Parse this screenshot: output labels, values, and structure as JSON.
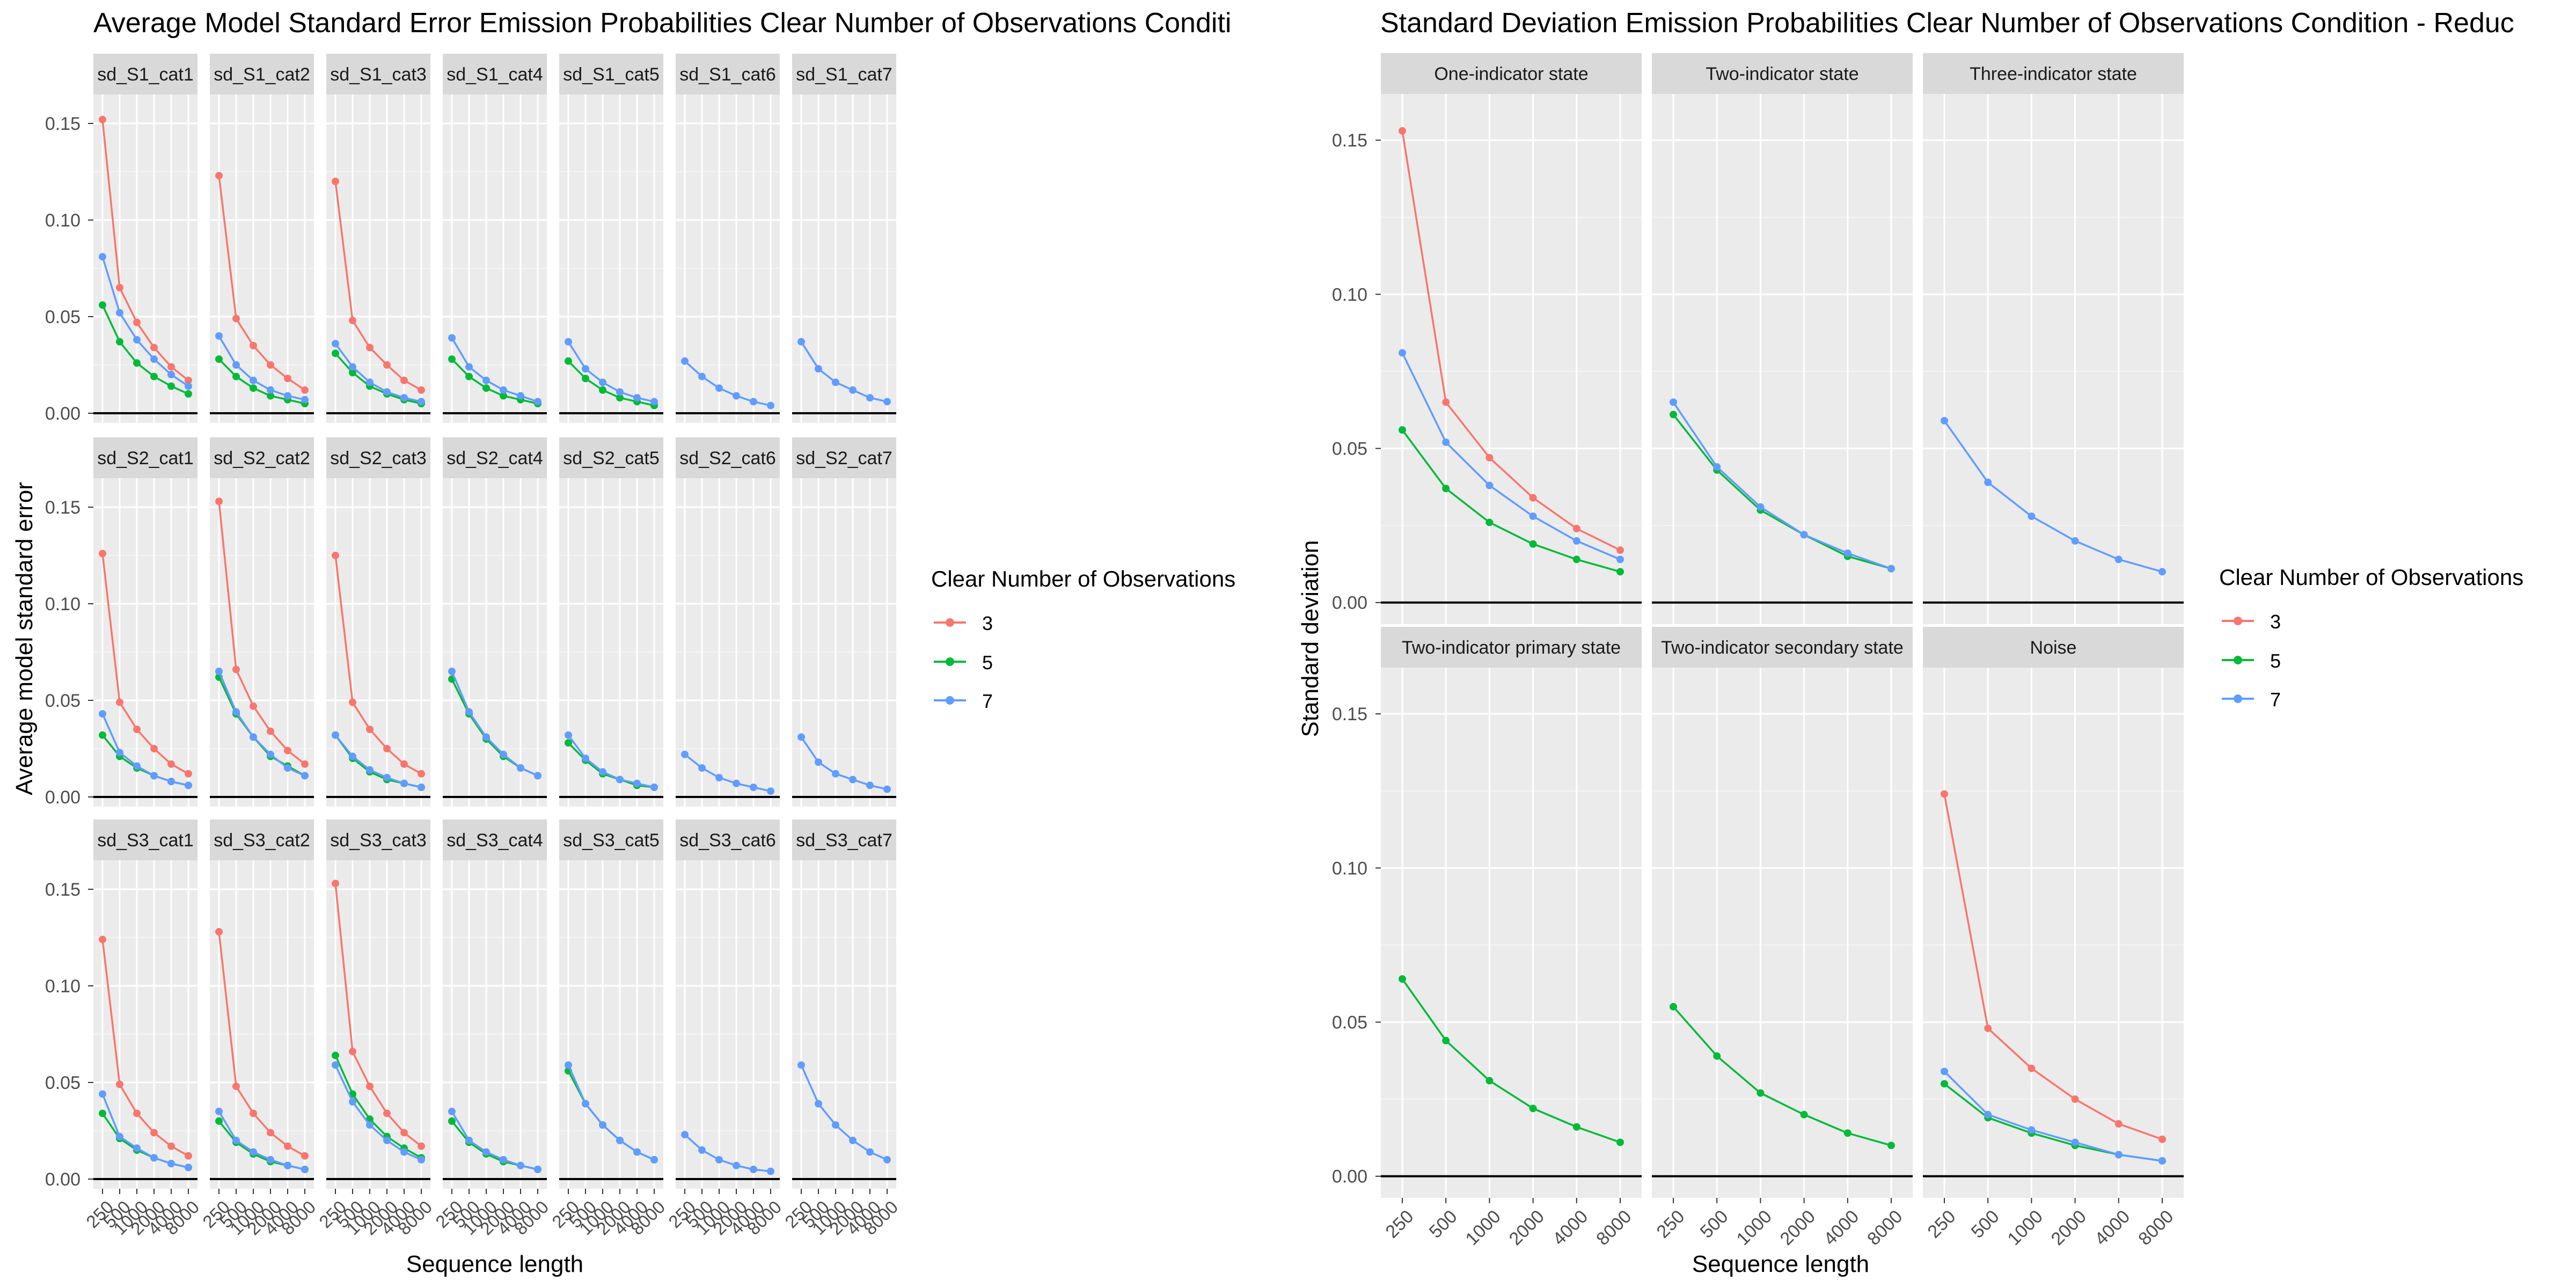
{
  "figure": {
    "left_title": "Average Model Standard Error Emission Probabilities Clear Number of Observations Conditi",
    "right_title": "Standard Deviation Emission Probabilities Clear Number of Observations Condition - Reduc",
    "left_ylabel": "Average model standard error",
    "right_ylabel": "Standard deviation",
    "left_xlabel": "Sequence length",
    "right_xlabel": "Sequence length"
  },
  "legend": {
    "title": "Clear Number of Observations",
    "items": [
      {
        "label": "3",
        "color": "#F8766D"
      },
      {
        "label": "5",
        "color": "#00BA38"
      },
      {
        "label": "7",
        "color": "#619CFF"
      }
    ]
  },
  "chart_data": [
    {
      "type": "line",
      "title": "Average Model Standard Error Emission Probabilities Clear Number of Observations Conditi",
      "xlabel": "Sequence length",
      "ylabel": "Average model standard error",
      "x": [
        "250",
        "500",
        "1000",
        "2000",
        "4000",
        "8000"
      ],
      "ylim": [
        -0.005,
        0.165
      ],
      "y_ticks": [
        "0.00",
        "0.05",
        "0.10",
        "0.15"
      ],
      "legend_position": "right",
      "panels": [
        {
          "label": "sd_S1_cat1",
          "series": [
            {
              "name": "3",
              "values": [
                0.152,
                0.065,
                0.047,
                0.034,
                0.024,
                0.017
              ]
            },
            {
              "name": "5",
              "values": [
                0.056,
                0.037,
                0.026,
                0.019,
                0.014,
                0.01
              ]
            },
            {
              "name": "7",
              "values": [
                0.081,
                0.052,
                0.038,
                0.028,
                0.02,
                0.014
              ]
            }
          ]
        },
        {
          "label": "sd_S1_cat2",
          "series": [
            {
              "name": "3",
              "values": [
                0.123,
                0.049,
                0.035,
                0.025,
                0.018,
                0.012
              ]
            },
            {
              "name": "5",
              "values": [
                0.028,
                0.019,
                0.013,
                0.009,
                0.007,
                0.005
              ]
            },
            {
              "name": "7",
              "values": [
                0.04,
                0.025,
                0.017,
                0.012,
                0.009,
                0.007
              ]
            }
          ]
        },
        {
          "label": "sd_S1_cat3",
          "series": [
            {
              "name": "3",
              "values": [
                0.12,
                0.048,
                0.034,
                0.025,
                0.017,
                0.012
              ]
            },
            {
              "name": "5",
              "values": [
                0.031,
                0.021,
                0.014,
                0.01,
                0.007,
                0.005
              ]
            },
            {
              "name": "7",
              "values": [
                0.036,
                0.024,
                0.016,
                0.011,
                0.008,
                0.006
              ]
            }
          ]
        },
        {
          "label": "sd_S1_cat4",
          "series": [
            {
              "name": "5",
              "values": [
                0.028,
                0.019,
                0.013,
                0.009,
                0.007,
                0.005
              ]
            },
            {
              "name": "7",
              "values": [
                0.039,
                0.024,
                0.017,
                0.012,
                0.009,
                0.006
              ]
            }
          ]
        },
        {
          "label": "sd_S1_cat5",
          "series": [
            {
              "name": "5",
              "values": [
                0.027,
                0.018,
                0.012,
                0.008,
                0.006,
                0.004
              ]
            },
            {
              "name": "7",
              "values": [
                0.037,
                0.023,
                0.016,
                0.011,
                0.008,
                0.006
              ]
            }
          ]
        },
        {
          "label": "sd_S1_cat6",
          "series": [
            {
              "name": "7",
              "values": [
                0.027,
                0.019,
                0.013,
                0.009,
                0.006,
                0.004
              ]
            }
          ]
        },
        {
          "label": "sd_S1_cat7",
          "series": [
            {
              "name": "7",
              "values": [
                0.037,
                0.023,
                0.016,
                0.012,
                0.008,
                0.006
              ]
            }
          ]
        },
        {
          "label": "sd_S2_cat1",
          "series": [
            {
              "name": "3",
              "values": [
                0.126,
                0.049,
                0.035,
                0.025,
                0.017,
                0.012
              ]
            },
            {
              "name": "5",
              "values": [
                0.032,
                0.021,
                0.015,
                0.011,
                0.008,
                0.006
              ]
            },
            {
              "name": "7",
              "values": [
                0.043,
                0.023,
                0.016,
                0.011,
                0.008,
                0.006
              ]
            }
          ]
        },
        {
          "label": "sd_S2_cat2",
          "series": [
            {
              "name": "3",
              "values": [
                0.153,
                0.066,
                0.047,
                0.034,
                0.024,
                0.017
              ]
            },
            {
              "name": "5",
              "values": [
                0.062,
                0.043,
                0.031,
                0.021,
                0.016,
                0.011
              ]
            },
            {
              "name": "7",
              "values": [
                0.065,
                0.044,
                0.031,
                0.022,
                0.015,
                0.011
              ]
            }
          ]
        },
        {
          "label": "sd_S2_cat3",
          "series": [
            {
              "name": "3",
              "values": [
                0.125,
                0.049,
                0.035,
                0.025,
                0.017,
                0.012
              ]
            },
            {
              "name": "5",
              "values": [
                0.032,
                0.02,
                0.013,
                0.009,
                0.007,
                0.005
              ]
            },
            {
              "name": "7",
              "values": [
                0.032,
                0.021,
                0.014,
                0.01,
                0.007,
                0.005
              ]
            }
          ]
        },
        {
          "label": "sd_S2_cat4",
          "series": [
            {
              "name": "5",
              "values": [
                0.061,
                0.043,
                0.03,
                0.021,
                0.015,
                0.011
              ]
            },
            {
              "name": "7",
              "values": [
                0.065,
                0.044,
                0.031,
                0.022,
                0.015,
                0.011
              ]
            }
          ]
        },
        {
          "label": "sd_S2_cat5",
          "series": [
            {
              "name": "5",
              "values": [
                0.028,
                0.019,
                0.012,
                0.009,
                0.006,
                0.005
              ]
            },
            {
              "name": "7",
              "values": [
                0.032,
                0.02,
                0.013,
                0.009,
                0.007,
                0.005
              ]
            }
          ]
        },
        {
          "label": "sd_S2_cat6",
          "series": [
            {
              "name": "7",
              "values": [
                0.022,
                0.015,
                0.01,
                0.007,
                0.005,
                0.003
              ]
            }
          ]
        },
        {
          "label": "sd_S2_cat7",
          "series": [
            {
              "name": "7",
              "values": [
                0.031,
                0.018,
                0.012,
                0.009,
                0.006,
                0.004
              ]
            }
          ]
        },
        {
          "label": "sd_S3_cat1",
          "series": [
            {
              "name": "3",
              "values": [
                0.124,
                0.049,
                0.034,
                0.024,
                0.017,
                0.012
              ]
            },
            {
              "name": "5",
              "values": [
                0.034,
                0.021,
                0.015,
                0.011,
                0.008,
                0.006
              ]
            },
            {
              "name": "7",
              "values": [
                0.044,
                0.022,
                0.016,
                0.011,
                0.008,
                0.006
              ]
            }
          ]
        },
        {
          "label": "sd_S3_cat2",
          "series": [
            {
              "name": "3",
              "values": [
                0.128,
                0.048,
                0.034,
                0.024,
                0.017,
                0.012
              ]
            },
            {
              "name": "5",
              "values": [
                0.03,
                0.019,
                0.013,
                0.009,
                0.007,
                0.005
              ]
            },
            {
              "name": "7",
              "values": [
                0.035,
                0.02,
                0.014,
                0.01,
                0.007,
                0.005
              ]
            }
          ]
        },
        {
          "label": "sd_S3_cat3",
          "series": [
            {
              "name": "3",
              "values": [
                0.153,
                0.066,
                0.048,
                0.034,
                0.024,
                0.017
              ]
            },
            {
              "name": "5",
              "values": [
                0.064,
                0.044,
                0.031,
                0.022,
                0.016,
                0.011
              ]
            },
            {
              "name": "7",
              "values": [
                0.059,
                0.04,
                0.028,
                0.02,
                0.014,
                0.01
              ]
            }
          ]
        },
        {
          "label": "sd_S3_cat4",
          "series": [
            {
              "name": "5",
              "values": [
                0.03,
                0.019,
                0.013,
                0.009,
                0.007,
                0.005
              ]
            },
            {
              "name": "7",
              "values": [
                0.035,
                0.02,
                0.014,
                0.01,
                0.007,
                0.005
              ]
            }
          ]
        },
        {
          "label": "sd_S3_cat5",
          "series": [
            {
              "name": "5",
              "values": [
                0.056,
                0.039,
                0.028,
                0.02,
                0.014,
                0.01
              ]
            },
            {
              "name": "7",
              "values": [
                0.059,
                0.039,
                0.028,
                0.02,
                0.014,
                0.01
              ]
            }
          ]
        },
        {
          "label": "sd_S3_cat6",
          "series": [
            {
              "name": "7",
              "values": [
                0.023,
                0.015,
                0.01,
                0.007,
                0.005,
                0.004
              ]
            }
          ]
        },
        {
          "label": "sd_S3_cat7",
          "series": [
            {
              "name": "7",
              "values": [
                0.059,
                0.039,
                0.028,
                0.02,
                0.014,
                0.01
              ]
            }
          ]
        }
      ]
    },
    {
      "type": "line",
      "title": "Standard Deviation Emission Probabilities Clear Number of Observations Condition - Reduc",
      "xlabel": "Sequence length",
      "ylabel": "Standard deviation",
      "x": [
        "250",
        "500",
        "1000",
        "2000",
        "4000",
        "8000"
      ],
      "ylim": [
        -0.007,
        0.165
      ],
      "y_ticks": [
        "0.00",
        "0.05",
        "0.10",
        "0.15"
      ],
      "legend_position": "right",
      "panels": [
        {
          "label": "One-indicator state",
          "series": [
            {
              "name": "3",
              "values": [
                0.153,
                0.065,
                0.047,
                0.034,
                0.024,
                0.017
              ]
            },
            {
              "name": "5",
              "values": [
                0.056,
                0.037,
                0.026,
                0.019,
                0.014,
                0.01
              ]
            },
            {
              "name": "7",
              "values": [
                0.081,
                0.052,
                0.038,
                0.028,
                0.02,
                0.014
              ]
            }
          ]
        },
        {
          "label": "Two-indicator state",
          "series": [
            {
              "name": "5",
              "values": [
                0.061,
                0.043,
                0.03,
                0.022,
                0.015,
                0.011
              ]
            },
            {
              "name": "7",
              "values": [
                0.065,
                0.044,
                0.031,
                0.022,
                0.016,
                0.011
              ]
            }
          ]
        },
        {
          "label": "Three-indicator state",
          "series": [
            {
              "name": "7",
              "values": [
                0.059,
                0.039,
                0.028,
                0.02,
                0.014,
                0.01
              ]
            }
          ]
        },
        {
          "label": "Two-indicator primary state",
          "series": [
            {
              "name": "5",
              "values": [
                0.064,
                0.044,
                0.031,
                0.022,
                0.016,
                0.011
              ]
            }
          ]
        },
        {
          "label": "Two-indicator secondary state",
          "series": [
            {
              "name": "5",
              "values": [
                0.055,
                0.039,
                0.027,
                0.02,
                0.014,
                0.01
              ]
            }
          ]
        },
        {
          "label": "Noise",
          "series": [
            {
              "name": "3",
              "values": [
                0.124,
                0.048,
                0.035,
                0.025,
                0.017,
                0.012
              ]
            },
            {
              "name": "5",
              "values": [
                0.03,
                0.019,
                0.014,
                0.01,
                0.007,
                0.005
              ]
            },
            {
              "name": "7",
              "values": [
                0.034,
                0.02,
                0.015,
                0.011,
                0.007,
                0.005
              ]
            }
          ]
        }
      ]
    }
  ]
}
